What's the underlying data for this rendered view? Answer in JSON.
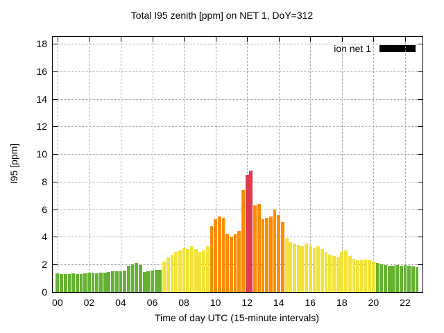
{
  "chart_data": {
    "type": "bar",
    "title": "Total I95 zenith [ppm] on NET 1, DoY=312",
    "xlabel": "Time of day UTC (15-minute intervals)",
    "ylabel": "I95 [ppm]",
    "legend": [
      {
        "label": "ion net 1",
        "color": "#000000"
      }
    ],
    "ylim": [
      0,
      18.5
    ],
    "xlim": [
      -0.3,
      23.1
    ],
    "yticks": [
      0,
      2,
      4,
      6,
      8,
      10,
      12,
      14,
      16,
      18
    ],
    "xticks": [
      {
        "value": 0,
        "label": "00"
      },
      {
        "value": 2,
        "label": "02"
      },
      {
        "value": 4,
        "label": "04"
      },
      {
        "value": 6,
        "label": "06"
      },
      {
        "value": 8,
        "label": "08"
      },
      {
        "value": 10,
        "label": "10"
      },
      {
        "value": 12,
        "label": "12"
      },
      {
        "value": 14,
        "label": "14"
      },
      {
        "value": 16,
        "label": "16"
      },
      {
        "value": 18,
        "label": "18"
      },
      {
        "value": 20,
        "label": "20"
      },
      {
        "value": 22,
        "label": "22"
      }
    ],
    "start_hour": 0,
    "interval_hours": 0.25,
    "bar_width_hours": 0.21,
    "colors": {
      "green": "#66b032",
      "yellow": "#f2e33a",
      "orange": "#ff8c00",
      "red": "#dd3c50"
    },
    "thresholds": {
      "yellow": 2.15,
      "orange": 4.0,
      "red": 8.0
    },
    "values": [
      1.35,
      1.3,
      1.3,
      1.3,
      1.35,
      1.3,
      1.3,
      1.35,
      1.4,
      1.4,
      1.35,
      1.4,
      1.4,
      1.45,
      1.5,
      1.5,
      1.5,
      1.55,
      1.9,
      2.0,
      2.1,
      1.95,
      1.45,
      1.5,
      1.55,
      1.6,
      1.6,
      2.2,
      2.5,
      2.7,
      2.9,
      3.0,
      3.2,
      3.1,
      3.3,
      3.1,
      2.9,
      3.0,
      3.3,
      4.8,
      5.3,
      5.5,
      5.4,
      4.2,
      4.0,
      4.2,
      4.4,
      7.4,
      8.5,
      8.8,
      6.3,
      6.4,
      5.3,
      5.4,
      5.5,
      6.0,
      5.6,
      5.1,
      3.9,
      3.6,
      3.5,
      3.4,
      3.3,
      3.5,
      3.3,
      3.2,
      3.3,
      3.1,
      2.9,
      2.7,
      2.6,
      2.5,
      2.9,
      3.0,
      2.6,
      2.4,
      2.3,
      2.3,
      2.35,
      2.3,
      2.2,
      2.1,
      2.0,
      1.95,
      1.9,
      1.9,
      1.95,
      1.9,
      1.95,
      1.9,
      1.85,
      1.8
    ]
  }
}
